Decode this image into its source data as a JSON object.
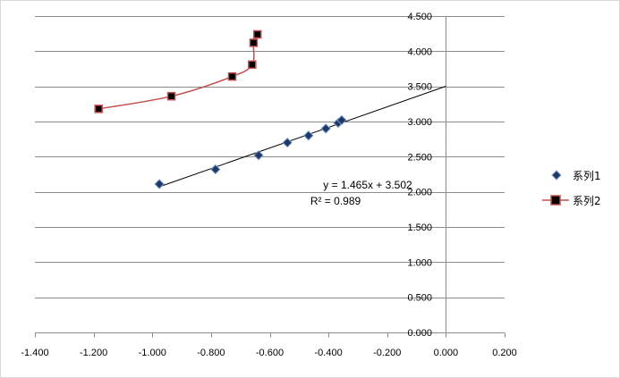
{
  "chart_data": {
    "type": "scatter",
    "xlim": [
      -1.4,
      0.2
    ],
    "ylim": [
      0.0,
      4.5
    ],
    "x_ticks": [
      "-1.400",
      "-1.200",
      "-1.000",
      "-0.800",
      "-0.600",
      "-0.400",
      "-0.200",
      "0.000",
      "0.200"
    ],
    "y_ticks": [
      "0.000",
      "0.500",
      "1.000",
      "1.500",
      "2.000",
      "2.500",
      "3.000",
      "3.500",
      "4.000",
      "4.500"
    ],
    "grid": "horizontal",
    "legend_position": "right",
    "series": [
      {
        "name": "系列1",
        "marker": "diamond",
        "color": "#1f3864",
        "points": [
          {
            "x": -0.976,
            "y": 2.11
          },
          {
            "x": -0.785,
            "y": 2.32
          },
          {
            "x": -0.638,
            "y": 2.52
          },
          {
            "x": -0.54,
            "y": 2.7
          },
          {
            "x": -0.468,
            "y": 2.8
          },
          {
            "x": -0.409,
            "y": 2.9
          },
          {
            "x": -0.367,
            "y": 2.98
          },
          {
            "x": -0.355,
            "y": 3.02
          }
        ],
        "trendline": {
          "type": "linear",
          "slope": 1.465,
          "intercept": 3.502,
          "x_range": [
            -0.976,
            0.0
          ],
          "color": "#000000",
          "equation_text": "y = 1.465x + 3.502",
          "r2_text": "R² = 0.989"
        }
      },
      {
        "name": "系列2",
        "marker": "square",
        "color": "#c0504d",
        "line_style": "smooth",
        "points": [
          {
            "x": -1.183,
            "y": 3.18
          },
          {
            "x": -0.935,
            "y": 3.36
          },
          {
            "x": -0.728,
            "y": 3.64
          },
          {
            "x": -0.66,
            "y": 3.81
          },
          {
            "x": -0.655,
            "y": 4.12
          },
          {
            "x": -0.642,
            "y": 4.24
          }
        ]
      }
    ]
  }
}
